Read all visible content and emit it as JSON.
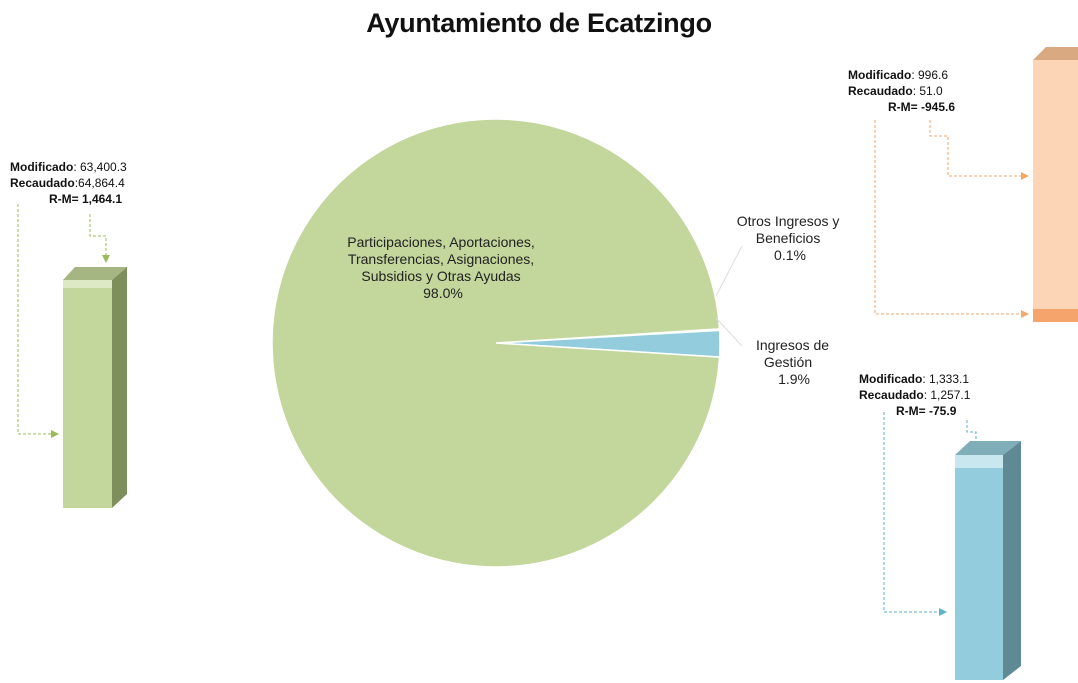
{
  "title": "Ayuntamiento de Ecatzingo",
  "chart_data": {
    "type": "pie",
    "title": "Ayuntamiento de Ecatzingo",
    "slices": [
      {
        "label": "Participaciones, Aportaciones, Transferencias, Asignaciones, Subsidios y Otras Ayudas",
        "value": 98.0,
        "value_label": "98.0%",
        "label_lines": [
          "Participaciones, Aportaciones,",
          "Transferencias, Asignaciones,",
          "Subsidios y Otras Ayudas",
          "98.0%"
        ],
        "color": "#c3d69b"
      },
      {
        "label": "Ingresos de Gestión",
        "value": 1.9,
        "value_label": "1.9%",
        "label_lines": [
          "Ingresos de",
          "Gestión",
          "1.9%"
        ],
        "color": "#93cddd"
      },
      {
        "label": "Otros Ingresos y Beneficios",
        "value": 0.1,
        "value_label": "0.1%",
        "label_lines": [
          "Otros Ingresos y",
          "Beneficios",
          "0.1%"
        ],
        "color": "#fbd5b5"
      }
    ],
    "detail_bars": [
      {
        "category": "Participaciones, Aportaciones, Transferencias, Asignaciones, Subsidios y Otras Ayudas",
        "modificado_label": "Modificado",
        "modificado": "63,400.3",
        "recaudado_label": "Recaudado",
        "recaudado": "64,864.4",
        "rm_label": "R-M=",
        "rm": "1,464.1",
        "color": "#c3d69b"
      },
      {
        "category": "Otros Ingresos y Beneficios",
        "modificado_label": "Modificado",
        "modificado": "996.6",
        "recaudado_label": "Recaudado",
        "recaudado": "51.0",
        "rm_label": "R-M=",
        "rm": "-945.6",
        "color": "#fbd5b5"
      },
      {
        "category": "Ingresos de Gestión",
        "modificado_label": "Modificado",
        "modificado": "1,333.1",
        "recaudado_label": "Recaudado",
        "recaudado": "1,257.1",
        "rm_label": "R-M=",
        "rm": "-75.9",
        "color": "#93cddd"
      }
    ],
    "legend": "none"
  }
}
